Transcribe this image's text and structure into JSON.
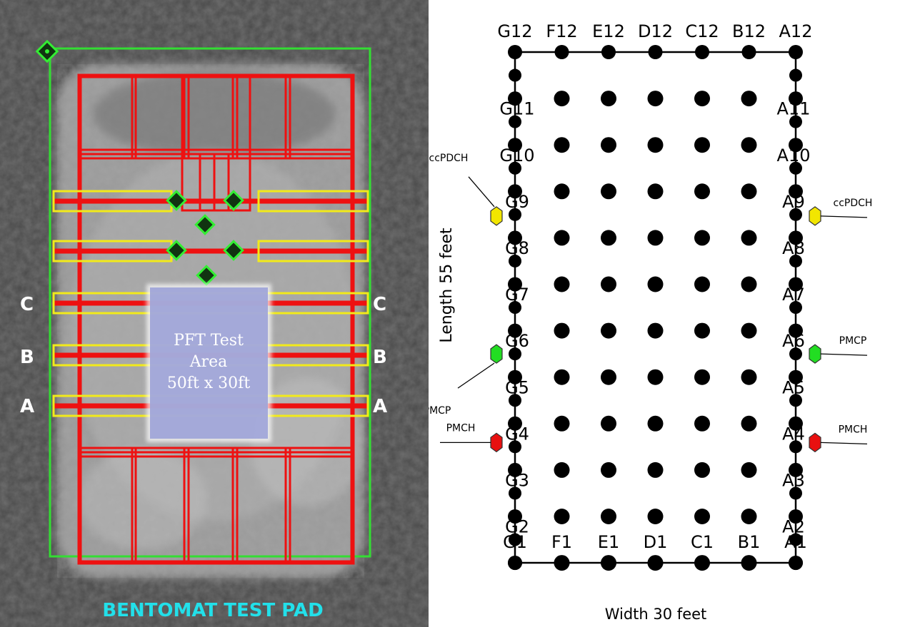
{
  "photo": {
    "caption": "BENTOMAT TEST PAD",
    "test_area": {
      "line1": "PFT Test",
      "line2": "Area",
      "line3": "50ft x 30ft"
    },
    "row_labels": [
      "C",
      "B",
      "A"
    ]
  },
  "grid": {
    "columns": [
      "G",
      "F",
      "E",
      "D",
      "C",
      "B",
      "A"
    ],
    "rows": 12,
    "width_label": "Width 30 feet",
    "length_label": "Length 55 feet",
    "sources": [
      {
        "label": "ccPDCH",
        "side": "left",
        "row": 8,
        "color": "#f2e600"
      },
      {
        "label": "PMCP",
        "side": "left",
        "row": 5,
        "color": "#22dd22"
      },
      {
        "label": "PMCH",
        "side": "left",
        "row": 3,
        "color": "#e81010"
      },
      {
        "label": "ccPDCH",
        "side": "right",
        "row": 8,
        "color": "#f2e600"
      },
      {
        "label": "PMCP",
        "side": "right",
        "row": 5,
        "color": "#22dd22"
      },
      {
        "label": "PMCH",
        "side": "right",
        "row": 3,
        "color": "#e81010"
      }
    ]
  },
  "colors": {
    "photo_frame": "#33dd33",
    "panel_lines": "#ee1111",
    "yellow_strips": "#f2ea1a",
    "caption": "#22e0ea"
  }
}
